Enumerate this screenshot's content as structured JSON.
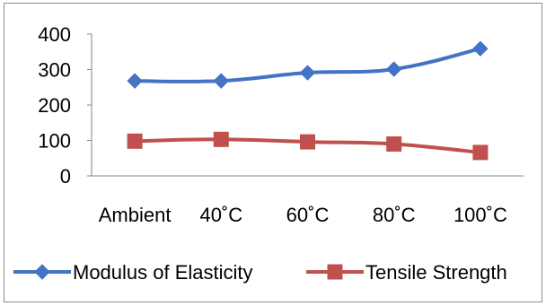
{
  "chart_data": {
    "type": "line",
    "categories": [
      "Ambient",
      "40˚C",
      "60˚C",
      "80˚C",
      "100˚C"
    ],
    "series": [
      {
        "name": "Modulus of Elasticity",
        "values": [
          268,
          268,
          291,
          301,
          359
        ],
        "color": "#4472c4",
        "marker": "diamond"
      },
      {
        "name": "Tensile Strength",
        "values": [
          98,
          103,
          96,
          90,
          66
        ],
        "color": "#c0504d",
        "marker": "square"
      }
    ],
    "yticks": [
      0,
      100,
      200,
      300,
      400
    ],
    "ylim": [
      0,
      400
    ],
    "grid": false,
    "legend_position": "bottom"
  }
}
